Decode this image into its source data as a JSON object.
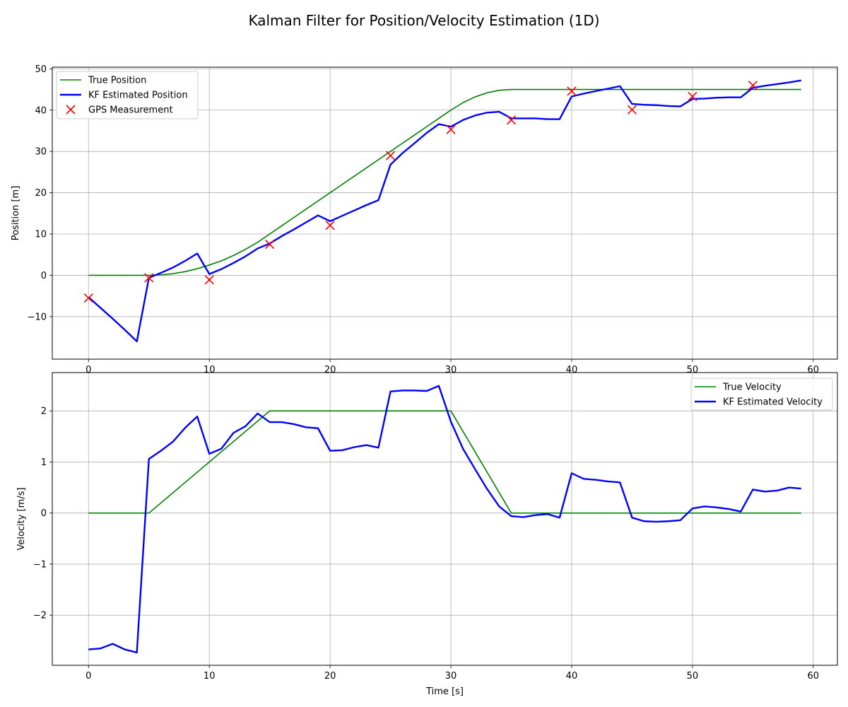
{
  "title": "Kalman Filter for Position/Velocity Estimation (1D)",
  "colors": {
    "true": "#008000",
    "kf": "#0000ff",
    "gps": "#ff0000",
    "grid": "#b0b0b0"
  },
  "chart_data": [
    {
      "type": "line",
      "ylabel": "Position [m]",
      "xlabel": "",
      "xlim": [
        -3,
        62
      ],
      "ylim": [
        -20.3,
        50.4
      ],
      "xticks": [
        0,
        10,
        20,
        30,
        40,
        50,
        60
      ],
      "yticks": [
        -10,
        0,
        10,
        20,
        30,
        40,
        50
      ],
      "grid": true,
      "legend_loc": "upper left",
      "series": [
        {
          "name": "True Position",
          "kind": "line",
          "color": "#008000",
          "x": [
            0,
            1,
            2,
            3,
            4,
            5,
            6,
            7,
            8,
            9,
            10,
            11,
            12,
            13,
            14,
            15,
            16,
            17,
            18,
            19,
            20,
            21,
            22,
            23,
            24,
            25,
            26,
            27,
            28,
            29,
            30,
            31,
            32,
            33,
            34,
            35,
            36,
            37,
            38,
            39,
            40,
            41,
            42,
            43,
            44,
            45,
            46,
            47,
            48,
            49,
            50,
            51,
            52,
            53,
            54,
            55,
            56,
            57,
            58,
            59
          ],
          "y": [
            0,
            0,
            0,
            0,
            0,
            0,
            0.1,
            0.4,
            0.9,
            1.6,
            2.5,
            3.5,
            4.8,
            6.3,
            8,
            10,
            12,
            14,
            16,
            18,
            20,
            22,
            24,
            26,
            28,
            30,
            32,
            34,
            36,
            38,
            40,
            41.8,
            43.2,
            44.2,
            44.8,
            45,
            45,
            45,
            45,
            45,
            45,
            45,
            45,
            45,
            45,
            45,
            45,
            45,
            45,
            45,
            45,
            45,
            45,
            45,
            45,
            45,
            45,
            45,
            45,
            45
          ]
        },
        {
          "name": "KF Estimated Position",
          "kind": "line",
          "color": "#0000ff",
          "x": [
            0,
            1,
            2,
            3,
            4,
            5,
            6,
            7,
            8,
            9,
            10,
            11,
            12,
            13,
            14,
            15,
            16,
            17,
            18,
            19,
            20,
            21,
            22,
            23,
            24,
            25,
            26,
            27,
            28,
            29,
            30,
            31,
            32,
            33,
            34,
            35,
            36,
            37,
            38,
            39,
            40,
            41,
            42,
            43,
            44,
            45,
            46,
            47,
            48,
            49,
            50,
            51,
            52,
            53,
            54,
            55,
            56,
            57,
            58,
            59
          ],
          "y": [
            -5.3,
            -7.9,
            -10.5,
            -13.2,
            -16,
            -0.6,
            0.6,
            1.9,
            3.5,
            5.3,
            0.3,
            1.5,
            3,
            4.6,
            6.5,
            7.7,
            9.5,
            11.1,
            12.8,
            14.5,
            13.1,
            14.4,
            15.7,
            17,
            18.2,
            26.8,
            29.6,
            32,
            34.5,
            36.6,
            36,
            37.6,
            38.7,
            39.4,
            39.6,
            38,
            38,
            38,
            37.8,
            37.8,
            43.3,
            44,
            44.6,
            45.2,
            45.8,
            41.5,
            41.3,
            41.2,
            41,
            40.9,
            42.7,
            42.8,
            43,
            43.1,
            43.1,
            45.4,
            45.9,
            46.3,
            46.7,
            47.2
          ]
        },
        {
          "name": "GPS Measurement",
          "kind": "scatter",
          "color": "#ff0000",
          "x": [
            0,
            5,
            10,
            15,
            20,
            25,
            30,
            35,
            40,
            45,
            50,
            55
          ],
          "y": [
            -5.5,
            -0.6,
            -1.1,
            7.5,
            12.1,
            29,
            35.3,
            37.6,
            44.6,
            40.1,
            43.3,
            46
          ]
        }
      ]
    },
    {
      "type": "line",
      "ylabel": "Velocity [m/s]",
      "xlabel": "Time [s]",
      "xlim": [
        -3,
        62
      ],
      "ylim": [
        -2.98,
        2.75
      ],
      "xticks": [
        0,
        10,
        20,
        30,
        40,
        50,
        60
      ],
      "yticks": [
        -2,
        -1,
        0,
        1,
        2
      ],
      "grid": true,
      "legend_loc": "upper right",
      "series": [
        {
          "name": "True Velocity",
          "kind": "line",
          "color": "#008000",
          "x": [
            0,
            5,
            15,
            30,
            35,
            59
          ],
          "y": [
            0,
            0,
            2,
            2,
            0,
            0
          ]
        },
        {
          "name": "KF Estimated Velocity",
          "kind": "line",
          "color": "#0000ff",
          "x": [
            0,
            1,
            2,
            3,
            4,
            5,
            6,
            7,
            8,
            9,
            10,
            11,
            12,
            13,
            14,
            15,
            16,
            17,
            18,
            19,
            20,
            21,
            22,
            23,
            24,
            25,
            26,
            27,
            28,
            29,
            30,
            31,
            32,
            33,
            34,
            35,
            36,
            37,
            38,
            39,
            40,
            41,
            42,
            43,
            44,
            45,
            46,
            47,
            48,
            49,
            50,
            51,
            52,
            53,
            54,
            55,
            56,
            57,
            58,
            59
          ],
          "y": [
            -2.67,
            -2.65,
            -2.56,
            -2.67,
            -2.73,
            1.06,
            1.22,
            1.4,
            1.67,
            1.89,
            1.16,
            1.26,
            1.57,
            1.7,
            1.95,
            1.78,
            1.78,
            1.74,
            1.68,
            1.66,
            1.22,
            1.23,
            1.29,
            1.33,
            1.28,
            2.38,
            2.4,
            2.4,
            2.39,
            2.49,
            1.79,
            1.26,
            0.86,
            0.47,
            0.13,
            -0.06,
            -0.08,
            -0.04,
            -0.02,
            -0.09,
            0.78,
            0.67,
            0.65,
            0.62,
            0.6,
            -0.09,
            -0.16,
            -0.17,
            -0.16,
            -0.14,
            0.09,
            0.13,
            0.11,
            0.08,
            0.03,
            0.46,
            0.42,
            0.44,
            0.5,
            0.48
          ]
        }
      ]
    }
  ]
}
